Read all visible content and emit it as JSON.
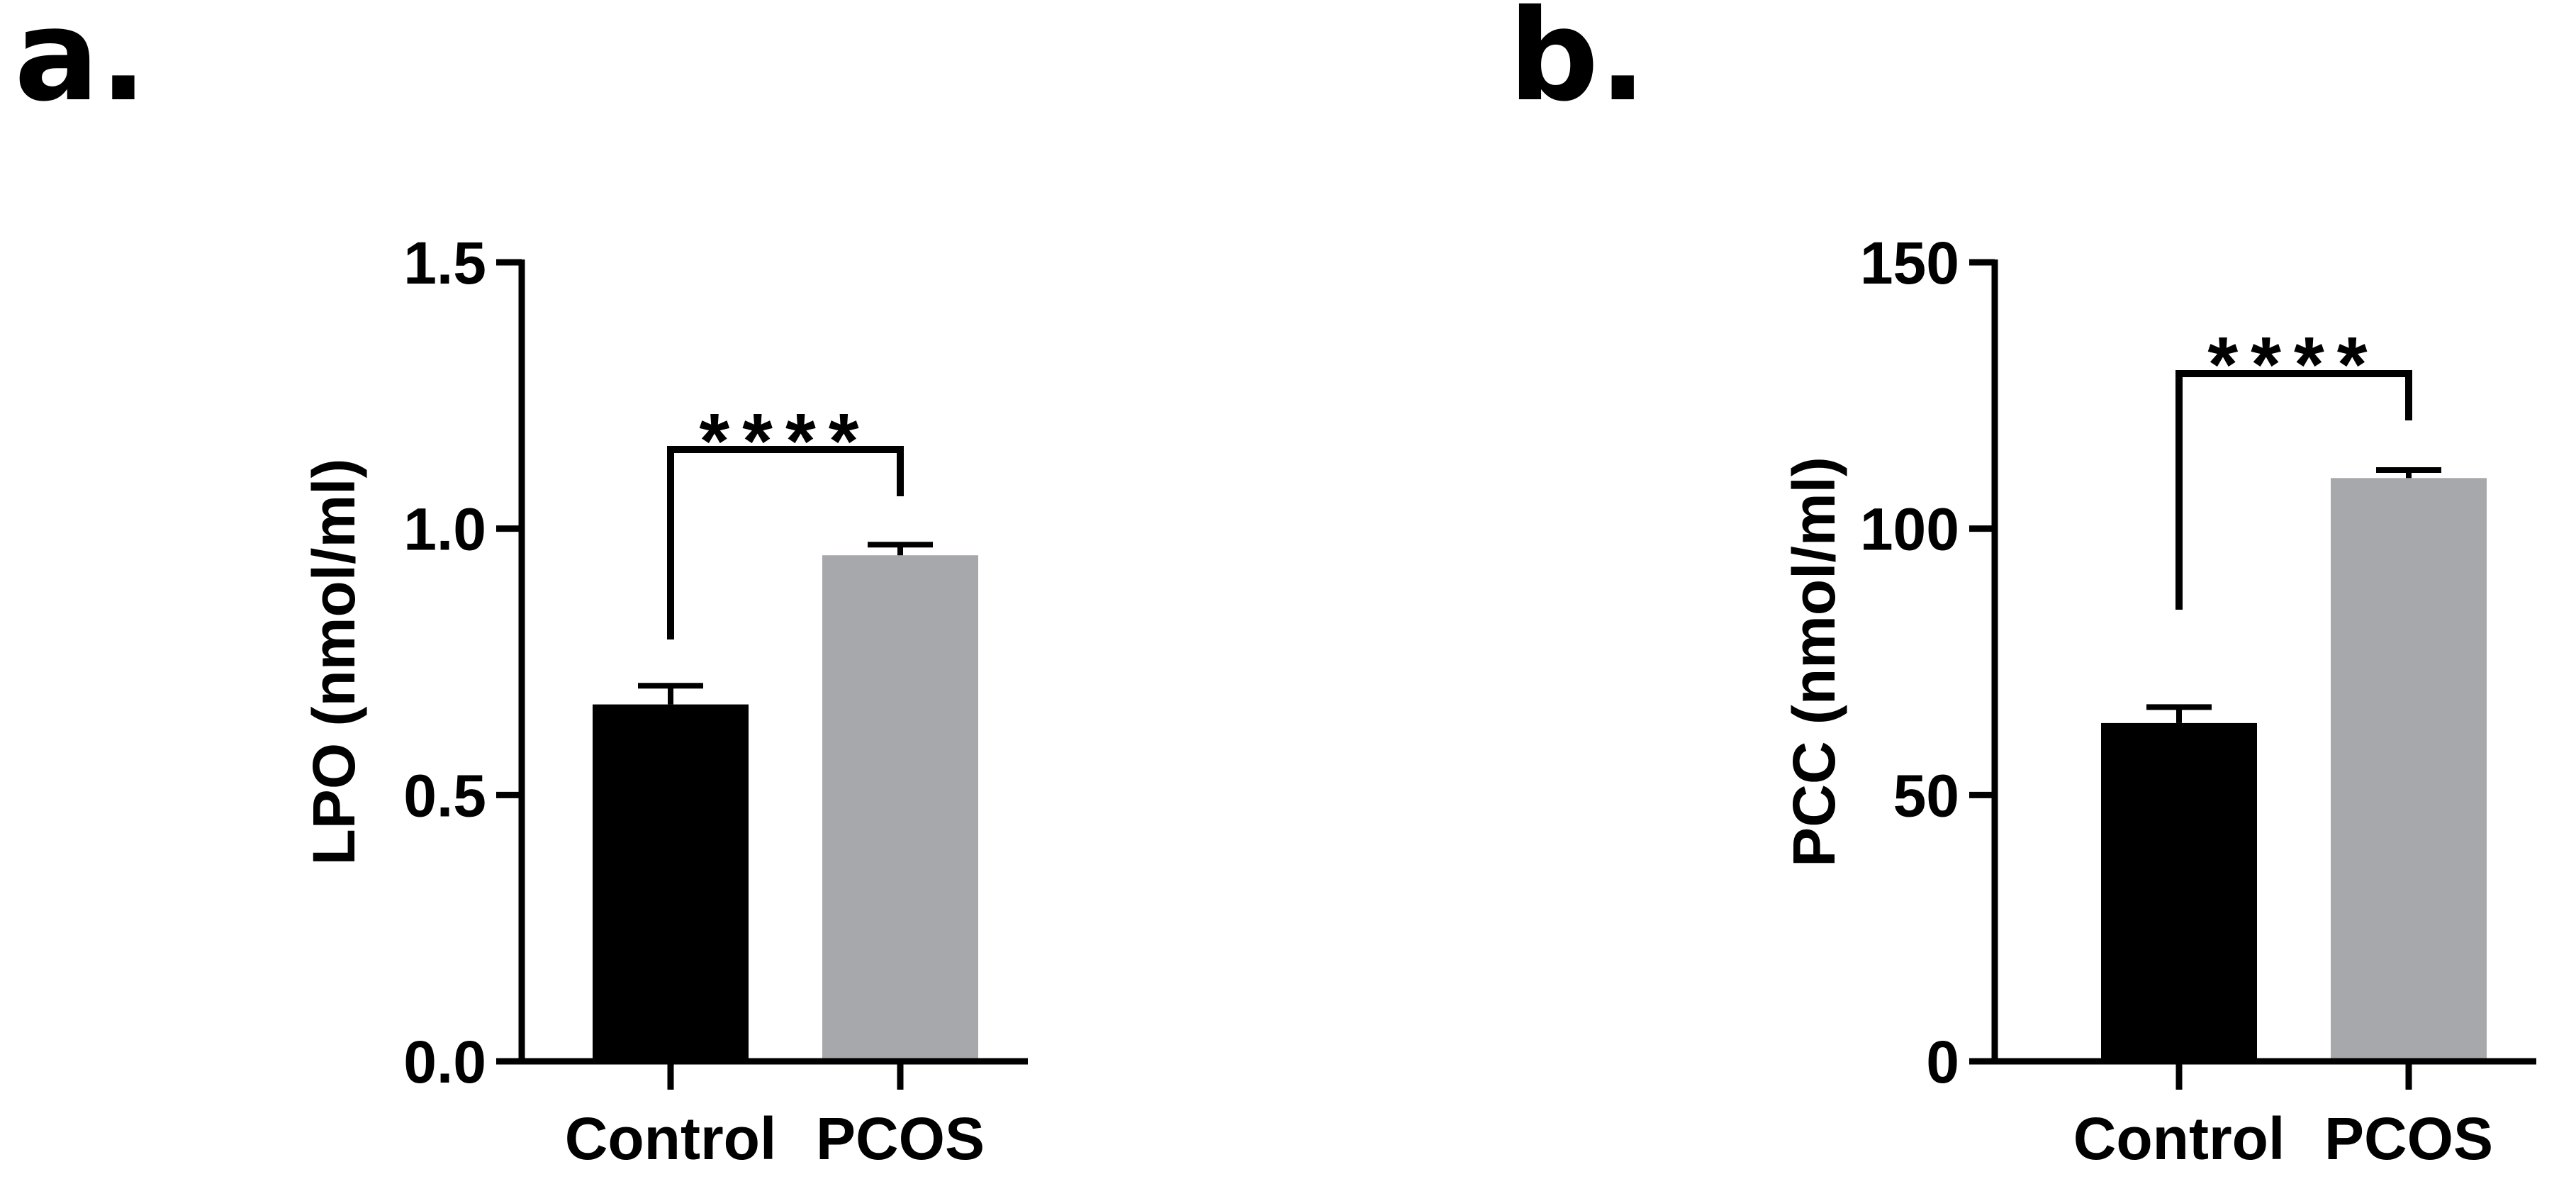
{
  "chart_data": [
    {
      "type": "bar",
      "panel_label": "a.",
      "title": "",
      "xlabel": "",
      "ylabel": "LPO (nmol/ml)",
      "categories": [
        "Control",
        "PCOS"
      ],
      "values": [
        0.67,
        0.95
      ],
      "errors": [
        0.035,
        0.02
      ],
      "ylim": [
        0,
        1.5
      ],
      "yticks": [
        0,
        0.5,
        1.0,
        1.5
      ],
      "ytick_labels": [
        "0.0",
        "0.5",
        "1.0",
        "1.5"
      ],
      "bar_colors": [
        "#000000",
        "#a7a8ab"
      ],
      "significance": {
        "between": [
          "Control",
          "PCOS"
        ],
        "label": "****"
      },
      "grid": false,
      "legend": "none"
    },
    {
      "type": "bar",
      "panel_label": "b.",
      "title": "",
      "xlabel": "",
      "ylabel": "PCC (nmol/ml)",
      "categories": [
        "Control",
        "PCOS"
      ],
      "values": [
        63.5,
        109.5
      ],
      "errors": [
        3.0,
        1.5
      ],
      "ylim": [
        0,
        150
      ],
      "yticks": [
        0,
        50,
        100,
        150
      ],
      "ytick_labels": [
        "0",
        "50",
        "100",
        "150"
      ],
      "bar_colors": [
        "#000000",
        "#a7a8ab"
      ],
      "significance": {
        "between": [
          "Control",
          "PCOS"
        ],
        "label": "****"
      },
      "grid": false,
      "legend": "none"
    }
  ]
}
